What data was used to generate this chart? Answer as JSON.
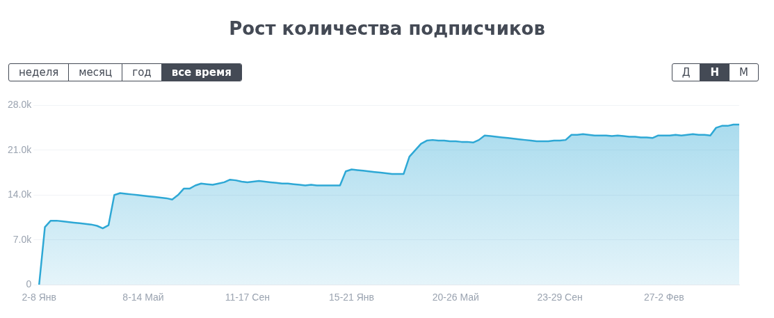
{
  "chart_data": {
    "type": "area",
    "title": "Рост количества подписчиков",
    "annotations": [
      "неделя",
      "месяц",
      "год",
      "все время",
      "Д",
      "Н",
      "М"
    ],
    "categories": [
      "2-8 Янв",
      null,
      null,
      null,
      null,
      null,
      null,
      null,
      null,
      null,
      null,
      null,
      null,
      null,
      null,
      null,
      null,
      null,
      "8-14 Май",
      null,
      null,
      null,
      null,
      null,
      null,
      null,
      null,
      null,
      null,
      null,
      null,
      null,
      null,
      null,
      null,
      null,
      "11-17 Сен",
      null,
      null,
      null,
      null,
      null,
      null,
      null,
      null,
      null,
      null,
      null,
      null,
      null,
      null,
      null,
      null,
      null,
      "15-21 Янв",
      null,
      null,
      null,
      null,
      null,
      null,
      null,
      null,
      null,
      null,
      null,
      null,
      null,
      null,
      null,
      null,
      null,
      "20-26 Май",
      null,
      null,
      null,
      null,
      null,
      null,
      null,
      null,
      null,
      null,
      null,
      null,
      null,
      null,
      null,
      null,
      null,
      "23-29 Сен",
      null,
      null,
      null,
      null,
      null,
      null,
      null,
      null,
      null,
      null,
      null,
      null,
      null,
      null,
      null,
      null,
      null,
      "27-2 Фев",
      null,
      null,
      null,
      null,
      null,
      null,
      null,
      null,
      null,
      null,
      null,
      null,
      null
    ],
    "series": [
      {
        "color": "#2ea8d5",
        "values": [
          0,
          9000,
          10000,
          10000,
          9900,
          9800,
          9700,
          9600,
          9500,
          9400,
          9200,
          8800,
          9300,
          14000,
          14300,
          14200,
          14100,
          14000,
          13900,
          13800,
          13700,
          13600,
          13500,
          13300,
          14000,
          15000,
          15000,
          15500,
          15800,
          15700,
          15600,
          15800,
          16000,
          16400,
          16300,
          16100,
          16000,
          16100,
          16200,
          16100,
          16000,
          15900,
          15800,
          15800,
          15700,
          15600,
          15500,
          15600,
          15500,
          15500,
          15500,
          15500,
          15500,
          17700,
          18000,
          17900,
          17800,
          17700,
          17600,
          17500,
          17400,
          17300,
          17300,
          17300,
          20000,
          21000,
          22000,
          22500,
          22600,
          22500,
          22500,
          22400,
          22400,
          22300,
          22300,
          22200,
          22600,
          23300,
          23200,
          23100,
          23000,
          22900,
          22800,
          22700,
          22600,
          22500,
          22400,
          22400,
          22400,
          22500,
          22500,
          22600,
          23400,
          23400,
          23500,
          23400,
          23300,
          23300,
          23300,
          23200,
          23300,
          23200,
          23100,
          23100,
          23000,
          23000,
          22900,
          23300,
          23300,
          23300,
          23400,
          23300,
          23400,
          23500,
          23400,
          23400,
          23300,
          24500,
          24800,
          24800,
          25000,
          25000
        ]
      }
    ],
    "ylim": [
      0,
      28000
    ],
    "yticks": [
      0,
      {
        "value": 7000,
        "label": "7.0k"
      },
      {
        "value": 14000,
        "label": "14.0k"
      },
      {
        "value": 21000,
        "label": "21.0k"
      },
      {
        "value": 28000,
        "label": "28.0k"
      }
    ],
    "grid": "y",
    "legend": false,
    "marker": "none"
  }
}
